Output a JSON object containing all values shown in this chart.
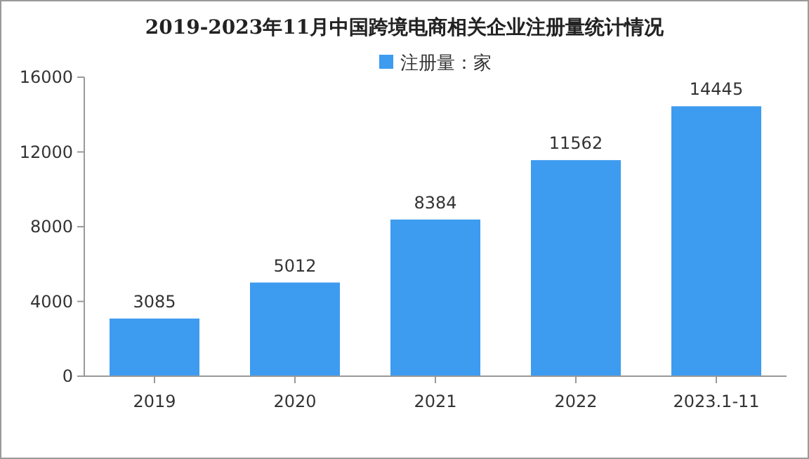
{
  "chart_data": {
    "type": "bar",
    "title": "2019-2023年11月中国跨境电商相关企业注册量统计情况",
    "categories": [
      "2019",
      "2020",
      "2021",
      "2022",
      "2023.1-11"
    ],
    "series": [
      {
        "name": "注册量：家",
        "color": "#3d9bf0",
        "values": [
          3085,
          5012,
          8384,
          11562,
          14445
        ]
      }
    ],
    "ylim": [
      0,
      16000
    ],
    "yticks": [
      0,
      4000,
      8000,
      12000,
      16000
    ],
    "grid": false,
    "legend": "top",
    "data_labels": true
  }
}
